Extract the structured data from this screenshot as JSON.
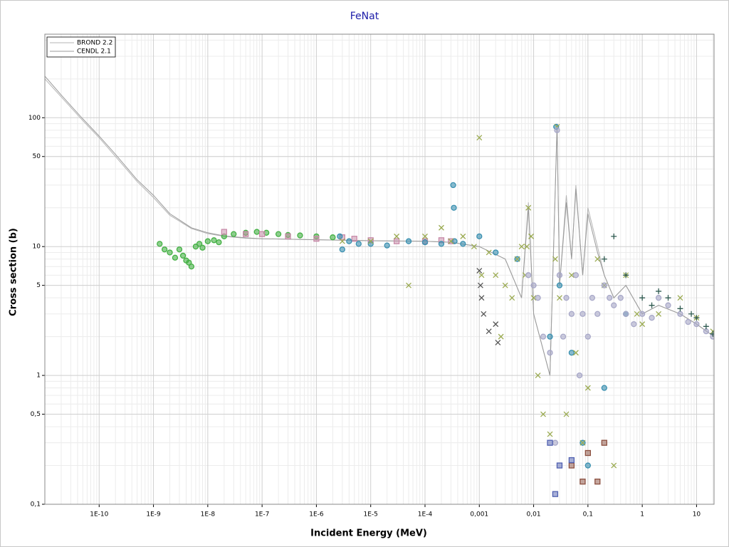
{
  "chart_data": {
    "type": "scatter",
    "title": "FeNat",
    "x_label": "Incident Energy (MeV)",
    "y_label": "Cross section (b)",
    "xscale": "log",
    "yscale": "log",
    "grid": true,
    "minor_grid": true,
    "legend": "upper left",
    "xlim": [
      1e-11,
      21
    ],
    "ylim": [
      0.1,
      445
    ],
    "xticks": [
      {
        "value": 1e-10,
        "label": "1E-10"
      },
      {
        "value": 1e-09,
        "label": "1E-9"
      },
      {
        "value": 1e-08,
        "label": "1E-8"
      },
      {
        "value": 1e-07,
        "label": "1E-7"
      },
      {
        "value": 1e-06,
        "label": "1E-6"
      },
      {
        "value": 1e-05,
        "label": "1E-5"
      },
      {
        "value": 0.0001,
        "label": "1E-4"
      },
      {
        "value": 0.001,
        "label": "0,001"
      },
      {
        "value": 0.01,
        "label": "0,01"
      },
      {
        "value": 0.1,
        "label": "0,1"
      },
      1,
      10
    ],
    "yticks": [
      {
        "value": 0.1,
        "label": "0,1"
      },
      {
        "value": 0.5,
        "label": "0,5"
      },
      1,
      5,
      10,
      50,
      100
    ],
    "series": [
      {
        "name": "BROND 2.2",
        "kind": "line",
        "color": "#b4b4b4",
        "x": [
          1e-11,
          2e-11,
          5e-11,
          1e-10,
          2e-10,
          5e-10,
          1e-09,
          2e-09,
          5e-09,
          1e-08,
          2e-08,
          5e-08,
          1e-07,
          1e-06,
          1e-05,
          0.0001,
          0.0003,
          0.001,
          0.003,
          0.006,
          0.008,
          0.01,
          0.02,
          0.027,
          0.03,
          0.04,
          0.05,
          0.06,
          0.08,
          0.1,
          0.15,
          0.2,
          0.3,
          0.5,
          1,
          2,
          5,
          10,
          21
        ],
        "values": [
          200,
          145,
          95,
          70,
          50,
          32,
          24,
          17.5,
          13.8,
          12.6,
          12,
          11.6,
          11.5,
          11.3,
          11.1,
          11,
          10.8,
          10,
          8,
          4,
          22,
          3,
          1,
          90,
          5,
          25,
          8,
          30,
          6,
          20,
          10,
          6,
          4,
          5,
          3,
          3.5,
          3,
          2.5,
          2
        ]
      },
      {
        "name": "CENDL 2.1",
        "kind": "line",
        "color": "#9a9a9a",
        "x": [
          1e-11,
          2e-11,
          5e-11,
          1e-10,
          2e-10,
          5e-10,
          1e-09,
          2e-09,
          5e-09,
          1e-08,
          2e-08,
          5e-08,
          1e-07,
          1e-06,
          1e-05,
          0.0001,
          0.0003,
          0.001,
          0.003,
          0.006,
          0.008,
          0.01,
          0.02,
          0.027,
          0.03,
          0.04,
          0.05,
          0.06,
          0.08,
          0.1,
          0.15,
          0.2,
          0.3,
          0.5,
          1,
          2,
          5,
          10,
          21
        ],
        "values": [
          210,
          150,
          98,
          72,
          52,
          33,
          25,
          18,
          14,
          12.8,
          12.1,
          11.7,
          11.5,
          11.3,
          11.1,
          11,
          10.8,
          10,
          8,
          4,
          20,
          3,
          1,
          85,
          5,
          22,
          8,
          28,
          6,
          18,
          9,
          6,
          4,
          5,
          3,
          3.5,
          3,
          2.5,
          2
        ]
      },
      {
        "kind": "points",
        "marker": "circle",
        "color": "#44b044",
        "x": [
          1.3e-09,
          1.6e-09,
          2e-09,
          2.5e-09,
          3e-09,
          3.5e-09,
          4e-09,
          4.5e-09,
          5e-09,
          6e-09,
          7e-09,
          8e-09,
          1e-08,
          1.3e-08,
          1.6e-08,
          2e-08,
          3e-08,
          5e-08,
          8e-08,
          1.2e-07,
          2e-07,
          3e-07,
          5e-07,
          1e-06,
          2e-06
        ],
        "values": [
          10.5,
          9.5,
          9,
          8.2,
          9.5,
          8.5,
          7.8,
          7.5,
          7,
          10,
          10.5,
          9.8,
          11,
          11.2,
          10.8,
          12,
          12.5,
          12.8,
          13,
          12.8,
          12.5,
          12.3,
          12.2,
          12,
          11.8
        ]
      },
      {
        "kind": "points",
        "marker": "square",
        "color": "#c88aa8",
        "x": [
          2e-08,
          5e-08,
          1e-07,
          3e-07,
          1e-06,
          3e-06,
          5e-06,
          1e-05,
          3e-05,
          0.0001,
          0.0002,
          0.0003
        ],
        "values": [
          13,
          12.5,
          12.5,
          12,
          11.5,
          11.8,
          11.5,
          11.2,
          11,
          11,
          11.2,
          11
        ]
      },
      {
        "kind": "points",
        "marker": "circle",
        "color": "#3a90b0",
        "x": [
          2.7e-06,
          3e-06,
          4e-06,
          6e-06,
          1e-05,
          2e-05,
          5e-05,
          0.0001,
          0.0002,
          0.00033,
          0.00034,
          0.00035,
          0.0005,
          0.001,
          0.002,
          0.005,
          0.02,
          0.026,
          0.03,
          0.05,
          0.08,
          0.1,
          0.2,
          0.5
        ],
        "values": [
          12,
          9.5,
          11,
          10.5,
          10.5,
          10.2,
          11,
          10.8,
          10.5,
          30,
          20,
          11,
          10.5,
          12,
          9,
          8,
          2,
          85,
          5,
          1.5,
          0.3,
          0.2,
          0.8,
          3
        ]
      },
      {
        "kind": "points",
        "marker": "cross",
        "color": "#9aaa50",
        "x": [
          3e-06,
          1e-05,
          3e-05,
          5e-05,
          0.0001,
          0.0002,
          0.0003,
          0.0005,
          0.0008,
          0.001,
          0.0011,
          0.0015,
          0.002,
          0.0025,
          0.003,
          0.004,
          0.005,
          0.006,
          0.007,
          0.0075,
          0.008,
          0.009,
          0.01,
          0.012,
          0.015,
          0.02,
          0.025,
          0.027,
          0.03,
          0.04,
          0.05,
          0.06,
          0.08,
          0.1,
          0.15,
          0.2,
          0.3,
          0.5,
          0.8,
          1,
          2,
          5,
          10,
          20
        ],
        "values": [
          11,
          11,
          12,
          5,
          12,
          14,
          11,
          12,
          10,
          70,
          6,
          9,
          6,
          2,
          5,
          4,
          8,
          10,
          6,
          10,
          20,
          12,
          4,
          1,
          0.5,
          0.35,
          8,
          85,
          4,
          0.5,
          6,
          1.5,
          0.3,
          0.8,
          8,
          5,
          0.2,
          6,
          3,
          2.5,
          3,
          4,
          2.8,
          2.2
        ]
      },
      {
        "kind": "points",
        "marker": "cross",
        "color": "#555555",
        "x": [
          0.001,
          0.00105,
          0.0011,
          0.0012,
          0.0015,
          0.002,
          0.0022
        ],
        "values": [
          6.5,
          5,
          4,
          3,
          2.2,
          2.5,
          1.8
        ]
      },
      {
        "kind": "points",
        "marker": "circle",
        "color": "#a8a8c8",
        "x": [
          0.008,
          0.01,
          0.012,
          0.015,
          0.02,
          0.025,
          0.027,
          0.03,
          0.035,
          0.04,
          0.05,
          0.06,
          0.07,
          0.08,
          0.1,
          0.12,
          0.15,
          0.2,
          0.25,
          0.3,
          0.4,
          0.5,
          0.7,
          1,
          1.5,
          2,
          3,
          5,
          7,
          10,
          15,
          20
        ],
        "values": [
          6,
          5,
          4,
          2,
          1.5,
          0.3,
          80,
          6,
          2,
          4,
          3,
          6,
          1,
          3,
          2,
          4,
          3,
          5,
          4,
          3.5,
          4,
          3,
          2.5,
          3,
          2.8,
          4,
          3.5,
          3,
          2.6,
          2.5,
          2.2,
          2
        ]
      },
      {
        "kind": "points",
        "marker": "plus",
        "color": "#2f5a50",
        "x": [
          0.2,
          0.3,
          0.5,
          1,
          1.5,
          2,
          3,
          5,
          8,
          10,
          15,
          20
        ],
        "values": [
          8,
          12,
          6,
          4,
          3.5,
          4.5,
          4,
          3.3,
          3,
          2.8,
          2.4,
          2.1
        ]
      },
      {
        "kind": "points",
        "marker": "square",
        "color": "#8c5040",
        "x": [
          0.05,
          0.08,
          0.1,
          0.15,
          0.2
        ],
        "values": [
          0.2,
          0.15,
          0.25,
          0.15,
          0.3
        ]
      },
      {
        "kind": "points",
        "marker": "square",
        "color": "#5060b0",
        "x": [
          0.02,
          0.025,
          0.03,
          0.05
        ],
        "values": [
          0.3,
          0.12,
          0.2,
          0.22
        ]
      }
    ]
  }
}
